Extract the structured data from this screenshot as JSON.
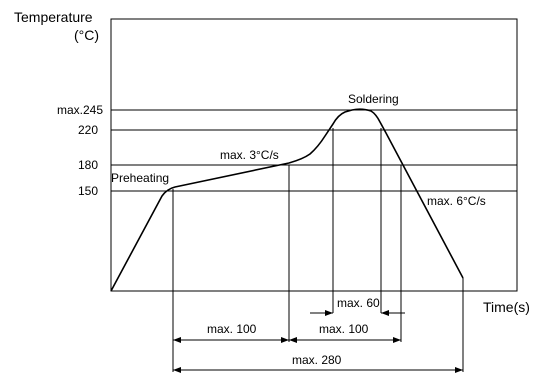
{
  "axes": {
    "y_title": "Temperature",
    "y_unit": "(°C)",
    "x_title": "Time(s)"
  },
  "levels": {
    "peak": "max.245",
    "t220": "220",
    "t180": "180",
    "t150": "150"
  },
  "stages": {
    "preheating": "Preheating",
    "soldering": "Soldering"
  },
  "rates": {
    "ramp_up": "max. 3°C/s",
    "cool_down": "max. 6°C/s"
  },
  "durations": {
    "peak_window": "max. 60",
    "preheat": "max. 100",
    "above_180": "max. 100",
    "total": "max. 280"
  }
}
